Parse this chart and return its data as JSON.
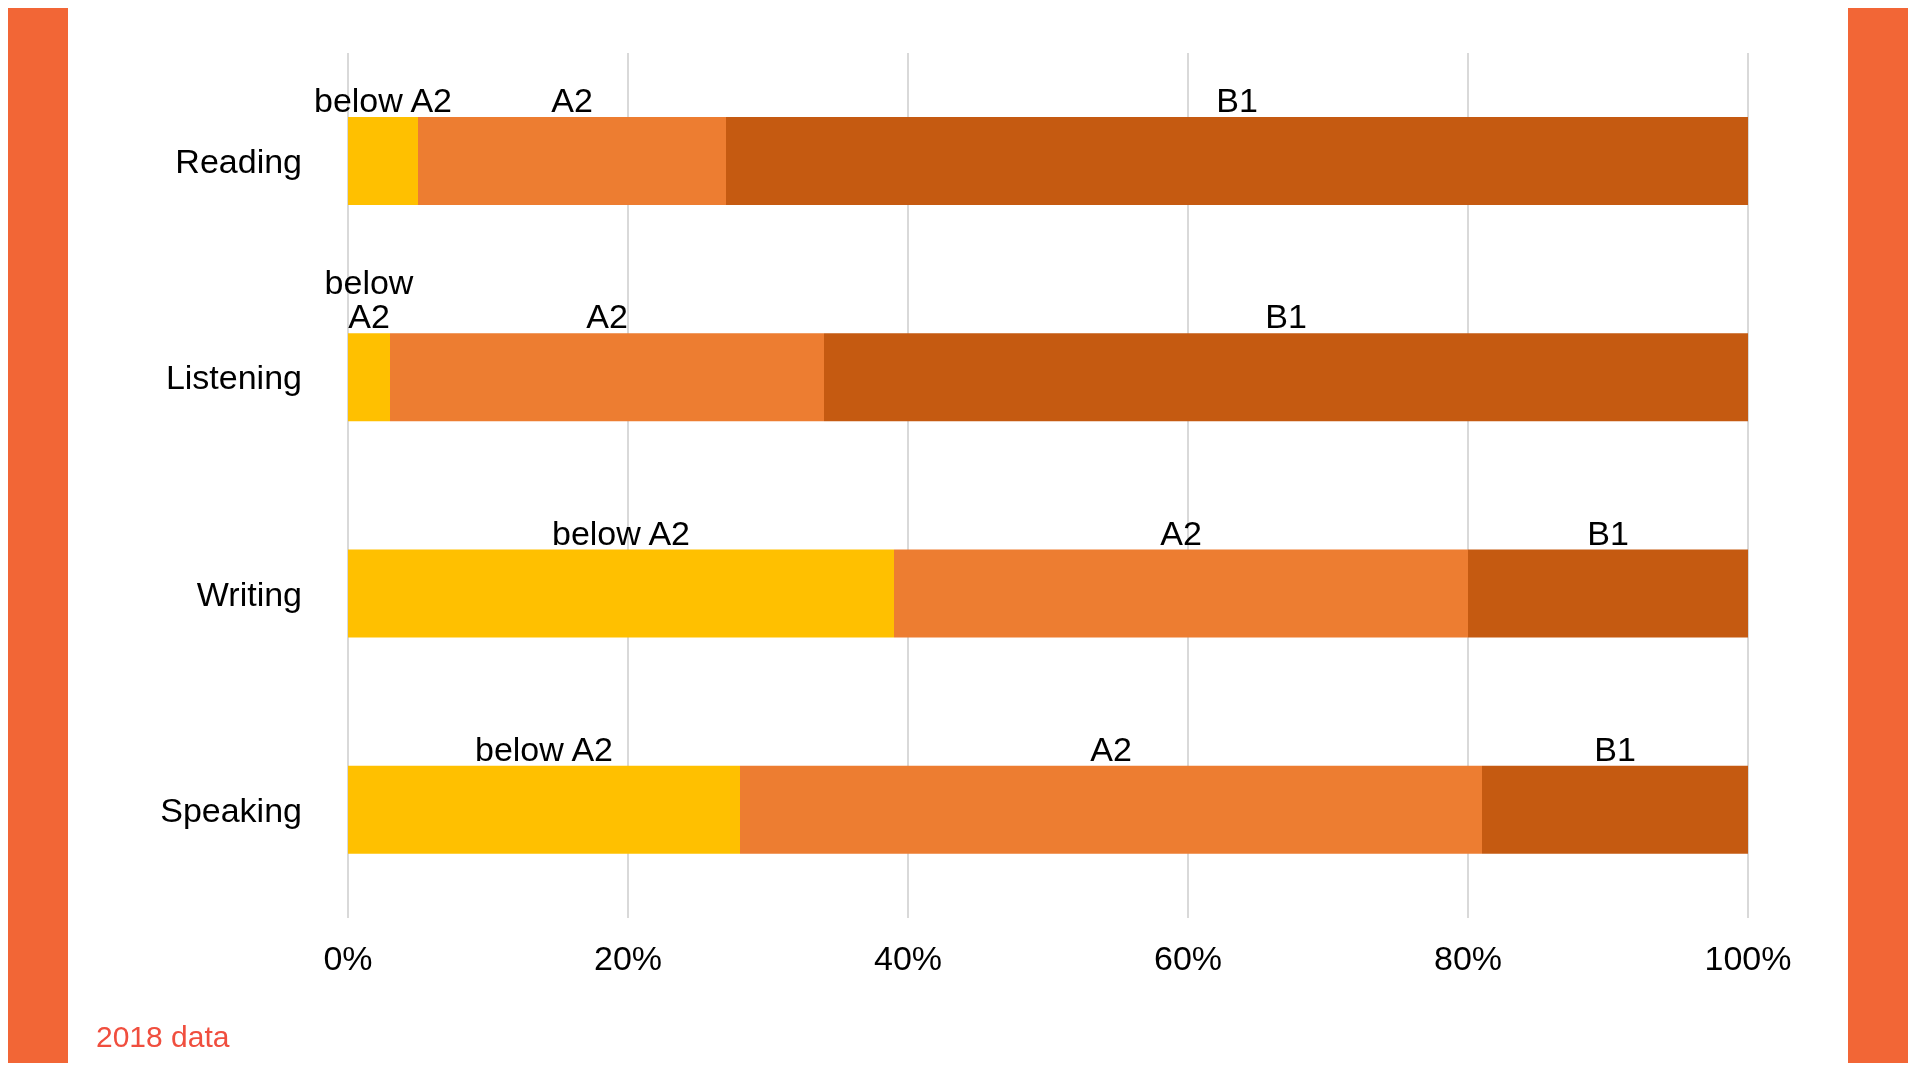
{
  "chart_data": {
    "type": "bar",
    "orientation": "horizontal",
    "stacked": true,
    "categories": [
      "Reading",
      "Listening",
      "Writing",
      "Speaking"
    ],
    "series": [
      {
        "name": "below A2",
        "color": "#ffc000",
        "values": [
          5,
          3,
          39,
          28
        ]
      },
      {
        "name": "A2",
        "color": "#ed7d31",
        "values": [
          22,
          31,
          41,
          53
        ]
      },
      {
        "name": "B1",
        "color": "#c55a11",
        "values": [
          73,
          66,
          20,
          19
        ]
      }
    ],
    "xlim": [
      0,
      100
    ],
    "xticks": [
      {
        "value": 0,
        "label": "0%"
      },
      {
        "value": 20,
        "label": "20%"
      },
      {
        "value": 40,
        "label": "40%"
      },
      {
        "value": 60,
        "label": "60%"
      },
      {
        "value": 80,
        "label": "80%"
      },
      {
        "value": 100,
        "label": "100%"
      }
    ],
    "grid": "x",
    "legend": false,
    "annotations": [
      "2018 data"
    ]
  }
}
